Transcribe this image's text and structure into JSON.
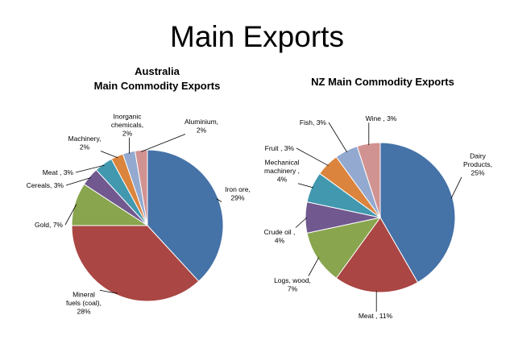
{
  "page_title": "Main Exports",
  "colors": {
    "blue": "#4572a7",
    "red": "#aa4643",
    "green": "#89a54e",
    "purple": "#71588f",
    "teal": "#4198af",
    "orange": "#db843d",
    "lightblue": "#93a9cf",
    "pink": "#d19392"
  },
  "chart_data": [
    {
      "type": "pie",
      "title": "Australia\nMain Commodity Exports",
      "title_lines": [
        "Australia",
        "Main Commodity Exports"
      ],
      "slices": [
        {
          "label": "Iron ore, 29%",
          "value": 29,
          "color": "#4572a7"
        },
        {
          "label": "Mineral fuels (coal), 28%",
          "value": 28,
          "color": "#aa4643"
        },
        {
          "label": "Gold, 7%",
          "value": 7,
          "color": "#89a54e"
        },
        {
          "label": "Cereals, 3%",
          "value": 3,
          "color": "#71588f"
        },
        {
          "label": "Meat , 3%",
          "value": 3,
          "color": "#4198af"
        },
        {
          "label": "Machinery, 2%",
          "value": 2,
          "color": "#db843d"
        },
        {
          "label": "Inorganic chemicals, 2%",
          "value": 2,
          "color": "#93a9cf"
        },
        {
          "label": "Aluminium, 2%",
          "value": 2,
          "color": "#d19392"
        }
      ]
    },
    {
      "type": "pie",
      "title": "NZ Main Commodity Exports",
      "slices": [
        {
          "label": "Dairy Products, 25%",
          "value": 25,
          "color": "#4572a7"
        },
        {
          "label": "Meat , 11%",
          "value": 11,
          "color": "#aa4643"
        },
        {
          "label": "Logs, wood, 7%",
          "value": 7,
          "color": "#89a54e"
        },
        {
          "label": "Crude oil , 4%",
          "value": 4,
          "color": "#71588f"
        },
        {
          "label": "Mechanical machinery , 4%",
          "value": 4,
          "color": "#4198af"
        },
        {
          "label": "Fruit , 3%",
          "value": 3,
          "color": "#db843d"
        },
        {
          "label": "Fish, 3%",
          "value": 3,
          "color": "#93a9cf"
        },
        {
          "label": "Wine , 3%",
          "value": 3,
          "color": "#d19392"
        }
      ]
    }
  ]
}
